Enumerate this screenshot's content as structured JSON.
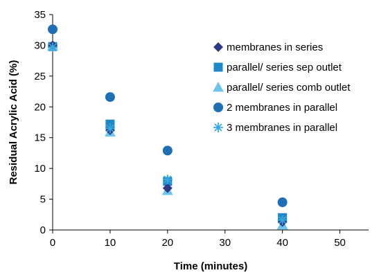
{
  "chart_data": {
    "type": "scatter",
    "title": "",
    "xlabel": "Time (minutes)",
    "ylabel": "Residual Acrylic Acid (%)",
    "xlim": [
      0,
      55
    ],
    "ylim": [
      0,
      35
    ],
    "x_ticks": [
      "0",
      "10",
      "20",
      "30",
      "40",
      "50"
    ],
    "y_ticks": [
      "0",
      "5",
      "10",
      "15",
      "20",
      "25",
      "30",
      "35"
    ],
    "grid": false,
    "legend_position": "right",
    "series": [
      {
        "name": "membranes in series",
        "marker": "diamond",
        "color": "#2E3A87",
        "x": [
          0,
          10,
          20,
          40
        ],
        "y": [
          30.0,
          16.2,
          6.8,
          1.3
        ]
      },
      {
        "name": "parallel/ series sep outlet",
        "marker": "square",
        "color": "#1F88C9",
        "x": [
          0,
          10,
          20,
          40
        ],
        "y": [
          29.8,
          17.2,
          7.9,
          2.0
        ]
      },
      {
        "name": "parallel/ series comb outlet",
        "marker": "triangle",
        "color": "#6EC4EA",
        "x": [
          0,
          10,
          20,
          40
        ],
        "y": [
          29.9,
          15.9,
          6.4,
          0.8
        ]
      },
      {
        "name": "2 membranes in parallel",
        "marker": "circle",
        "color": "#1F6FB5",
        "x": [
          0,
          10,
          20,
          40
        ],
        "y": [
          32.6,
          21.6,
          12.9,
          4.5
        ]
      },
      {
        "name": "3 membranes in parallel",
        "marker": "star",
        "color": "#35A8DF",
        "x": [
          0,
          10,
          20,
          40
        ],
        "y": [
          29.7,
          16.5,
          8.2,
          1.6
        ]
      }
    ]
  }
}
